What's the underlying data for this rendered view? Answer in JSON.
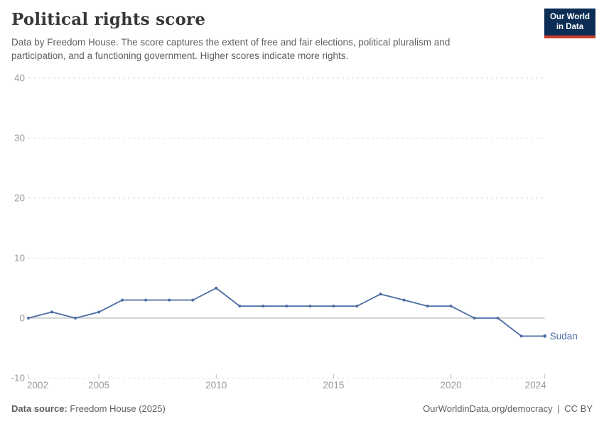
{
  "header": {
    "title": "Political rights score",
    "subtitle": "Data by Freedom House. The score captures the extent of free and fair elections, political pluralism and participation, and a functioning government. Higher scores indicate more rights.",
    "logo": {
      "line1": "Our World",
      "line2": "in Data"
    }
  },
  "chart_data": {
    "type": "line",
    "title": "Political rights score",
    "x": [
      2002,
      2003,
      2004,
      2005,
      2006,
      2007,
      2008,
      2009,
      2010,
      2011,
      2012,
      2013,
      2014,
      2015,
      2016,
      2017,
      2018,
      2019,
      2020,
      2021,
      2022,
      2023,
      2024
    ],
    "series": [
      {
        "name": "Sudan",
        "values": [
          0,
          1,
          0,
          1,
          3,
          3,
          3,
          3,
          5,
          2,
          2,
          2,
          2,
          2,
          2,
          4,
          3,
          2,
          2,
          0,
          0,
          -3,
          -3
        ]
      }
    ],
    "xlabel": "",
    "ylabel": "",
    "ylim": [
      -10,
      40
    ],
    "yticks": [
      40,
      30,
      20,
      10,
      0,
      -10
    ],
    "xticks": [
      2002,
      2005,
      2010,
      2015,
      2020,
      2024
    ],
    "grid": "horizontal-dashed",
    "legend_position": "end-of-line",
    "line_color": "#4c6da4",
    "zero_line_color": "#aeaeae"
  },
  "footer": {
    "source_label": "Data source:",
    "source_value": "Freedom House (2025)",
    "url": "OurWorldinData.org/democracy",
    "separator": "|",
    "license": "CC BY"
  },
  "colors": {
    "logo_background": "#0c2d54",
    "logo_accent": "#cc3b31",
    "title_text": "#383838",
    "muted_text": "#5f5f5f",
    "axis_text": "#9a9a9a"
  }
}
